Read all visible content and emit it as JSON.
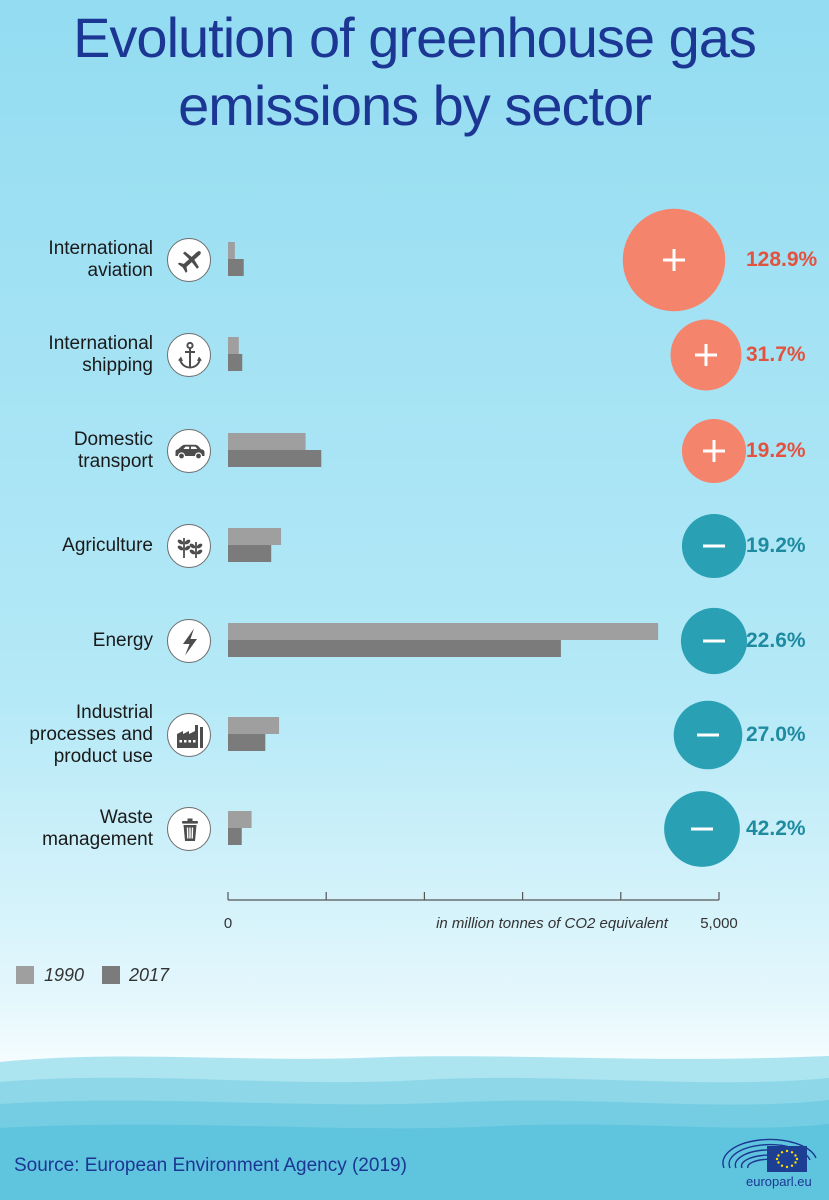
{
  "title": [
    "Evolution of greenhouse gas",
    "emissions by sector"
  ],
  "chart_data": {
    "type": "bar",
    "orientation": "horizontal",
    "categories": [
      [
        "International",
        "aviation"
      ],
      [
        "International",
        "shipping"
      ],
      [
        "Domestic",
        "transport"
      ],
      [
        "Agriculture"
      ],
      [
        "Energy"
      ],
      [
        "Industrial",
        "processes and",
        "product use"
      ],
      [
        "Waste",
        "management"
      ]
    ],
    "series": [
      {
        "name": "1990",
        "color": "#9f9f9f",
        "values": [
          70,
          110,
          790,
          540,
          4380,
          520,
          240
        ]
      },
      {
        "name": "2017",
        "color": "#7b7b7b",
        "values": [
          160,
          145,
          950,
          440,
          3390,
          380,
          140
        ]
      }
    ],
    "change": [
      "128.9%",
      "31.7%",
      "19.2%",
      "19.2%",
      "22.6%",
      "27.0%",
      "42.2%"
    ],
    "change_sign": [
      "+",
      "+",
      "+",
      "-",
      "-",
      "-",
      "-"
    ],
    "change_value": [
      128.9,
      31.7,
      19.2,
      -19.2,
      -22.6,
      -27.0,
      -42.2
    ],
    "icons": [
      "plane-icon",
      "anchor-icon",
      "car-icon",
      "plant-icon",
      "lightning-icon",
      "factory-icon",
      "bin-icon"
    ],
    "xlim": [
      0,
      5000
    ],
    "tick_labels": [
      "0",
      "5,000"
    ],
    "xlabel": "in million tonnes of CO2 equivalent",
    "legend_position": "bottom-left",
    "colors": {
      "increase": "#f5846d",
      "decrease": "#2aa0b5"
    }
  },
  "source": "Source: European Environment Agency (2019)",
  "brand": "europarl.eu"
}
